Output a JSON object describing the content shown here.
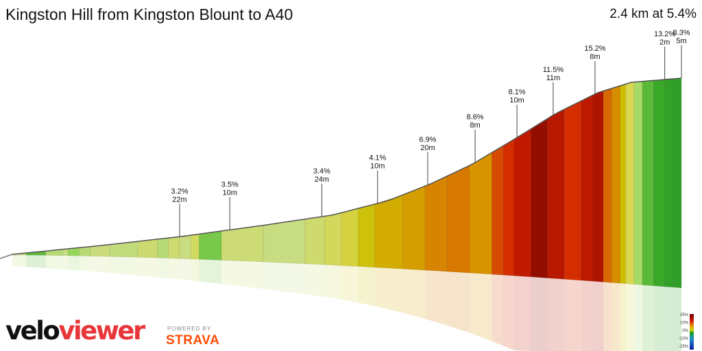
{
  "header": {
    "title": "Kingston Hill from Kingston Blount to A40",
    "summary": "2.4 km at 5.4%"
  },
  "branding": {
    "logo_part1": "velo",
    "logo_part2": "viewer",
    "powered_by": "POWERED BY",
    "strava": "STRAVA"
  },
  "colors": {
    "veloviewer_red": "#e8363a",
    "strava_orange": "#fc4c02"
  },
  "chart_data": {
    "type": "area",
    "distance_km": 2.4,
    "average_gradient_pct": 5.4,
    "profile": [
      {
        "x": 0.0,
        "y": 0
      },
      {
        "x": 0.3,
        "y": 8
      },
      {
        "x": 0.6,
        "y": 17
      },
      {
        "x": 0.9,
        "y": 28
      },
      {
        "x": 1.15,
        "y": 38
      },
      {
        "x": 1.35,
        "y": 52
      },
      {
        "x": 1.5,
        "y": 68
      },
      {
        "x": 1.65,
        "y": 87
      },
      {
        "x": 1.8,
        "y": 111
      },
      {
        "x": 1.95,
        "y": 136
      },
      {
        "x": 2.1,
        "y": 156
      },
      {
        "x": 2.22,
        "y": 166
      },
      {
        "x": 2.4,
        "y": 170
      }
    ],
    "segments": [
      {
        "x0": 0.0,
        "x1": 0.05,
        "gradient": 2.8
      },
      {
        "x0": 0.05,
        "x1": 0.12,
        "gradient": 0.5
      },
      {
        "x0": 0.12,
        "x1": 0.18,
        "gradient": 2.5
      },
      {
        "x0": 0.18,
        "x1": 0.2,
        "gradient": 3.0
      },
      {
        "x0": 0.2,
        "x1": 0.24,
        "gradient": 1.5
      },
      {
        "x0": 0.24,
        "x1": 0.28,
        "gradient": 2.5
      },
      {
        "x0": 0.28,
        "x1": 0.35,
        "gradient": 3.2
      },
      {
        "x0": 0.35,
        "x1": 0.45,
        "gradient": 2.8
      },
      {
        "x0": 0.45,
        "x1": 0.52,
        "gradient": 3.5
      },
      {
        "x0": 0.52,
        "x1": 0.56,
        "gradient": 2.5
      },
      {
        "x0": 0.56,
        "x1": 0.6,
        "gradient": 3.5
      },
      {
        "x0": 0.6,
        "x1": 0.64,
        "gradient": 3.0
      },
      {
        "x0": 0.64,
        "x1": 0.67,
        "gradient": 4.0
      },
      {
        "x0": 0.67,
        "x1": 0.75,
        "gradient": 1.0
      },
      {
        "x0": 0.75,
        "x1": 0.9,
        "gradient": 3.4
      },
      {
        "x0": 0.9,
        "x1": 1.05,
        "gradient": 3.0
      },
      {
        "x0": 1.05,
        "x1": 1.12,
        "gradient": 3.6
      },
      {
        "x0": 1.12,
        "x1": 1.18,
        "gradient": 4.1
      },
      {
        "x0": 1.18,
        "x1": 1.24,
        "gradient": 4.8
      },
      {
        "x0": 1.24,
        "x1": 1.3,
        "gradient": 5.8
      },
      {
        "x0": 1.3,
        "x1": 1.4,
        "gradient": 6.9
      },
      {
        "x0": 1.4,
        "x1": 1.48,
        "gradient": 7.6
      },
      {
        "x0": 1.48,
        "x1": 1.56,
        "gradient": 8.6
      },
      {
        "x0": 1.56,
        "x1": 1.64,
        "gradient": 9.0
      },
      {
        "x0": 1.64,
        "x1": 1.72,
        "gradient": 8.1
      },
      {
        "x0": 1.72,
        "x1": 1.76,
        "gradient": 10.5
      },
      {
        "x0": 1.76,
        "x1": 1.8,
        "gradient": 11.5
      },
      {
        "x0": 1.8,
        "x1": 1.86,
        "gradient": 13.0
      },
      {
        "x0": 1.86,
        "x1": 1.92,
        "gradient": 15.2
      },
      {
        "x0": 1.92,
        "x1": 1.98,
        "gradient": 13.5
      },
      {
        "x0": 1.98,
        "x1": 2.04,
        "gradient": 11.5
      },
      {
        "x0": 2.04,
        "x1": 2.08,
        "gradient": 13.2
      },
      {
        "x0": 2.08,
        "x1": 2.12,
        "gradient": 14.0
      },
      {
        "x0": 2.12,
        "x1": 2.15,
        "gradient": 9.5
      },
      {
        "x0": 2.15,
        "x1": 2.18,
        "gradient": 8.3
      },
      {
        "x0": 2.18,
        "x1": 2.2,
        "gradient": 6.0
      },
      {
        "x0": 2.2,
        "x1": 2.23,
        "gradient": 4.5
      },
      {
        "x0": 2.23,
        "x1": 2.26,
        "gradient": 2.0
      },
      {
        "x0": 2.26,
        "x1": 2.3,
        "gradient": 0.5
      },
      {
        "x0": 2.3,
        "x1": 2.34,
        "gradient": -0.5
      },
      {
        "x0": 2.34,
        "x1": 2.37,
        "gradient": -1.5
      },
      {
        "x0": 2.37,
        "x1": 2.4,
        "gradient": -2.0
      }
    ],
    "annotations": [
      {
        "x": 0.6,
        "gradient": "3.2%",
        "length": "22m"
      },
      {
        "x": 0.78,
        "gradient": "3.5%",
        "length": "10m"
      },
      {
        "x": 1.11,
        "gradient": "3.4%",
        "length": "24m"
      },
      {
        "x": 1.31,
        "gradient": "4.1%",
        "length": "10m"
      },
      {
        "x": 1.49,
        "gradient": "6.9%",
        "length": "20m"
      },
      {
        "x": 1.66,
        "gradient": "8.6%",
        "length": "8m"
      },
      {
        "x": 1.81,
        "gradient": "8.1%",
        "length": "10m"
      },
      {
        "x": 1.94,
        "gradient": "11.5%",
        "length": "11m"
      },
      {
        "x": 2.09,
        "gradient": "15.2%",
        "length": "8m"
      },
      {
        "x": 2.34,
        "gradient": "13.2%",
        "length": "2m"
      },
      {
        "x": 2.51,
        "gradient": "8.3%",
        "length": "5m"
      }
    ],
    "legend": {
      "labels": [
        "25%",
        "10%",
        "0%",
        "-10%",
        "-25%"
      ]
    }
  }
}
